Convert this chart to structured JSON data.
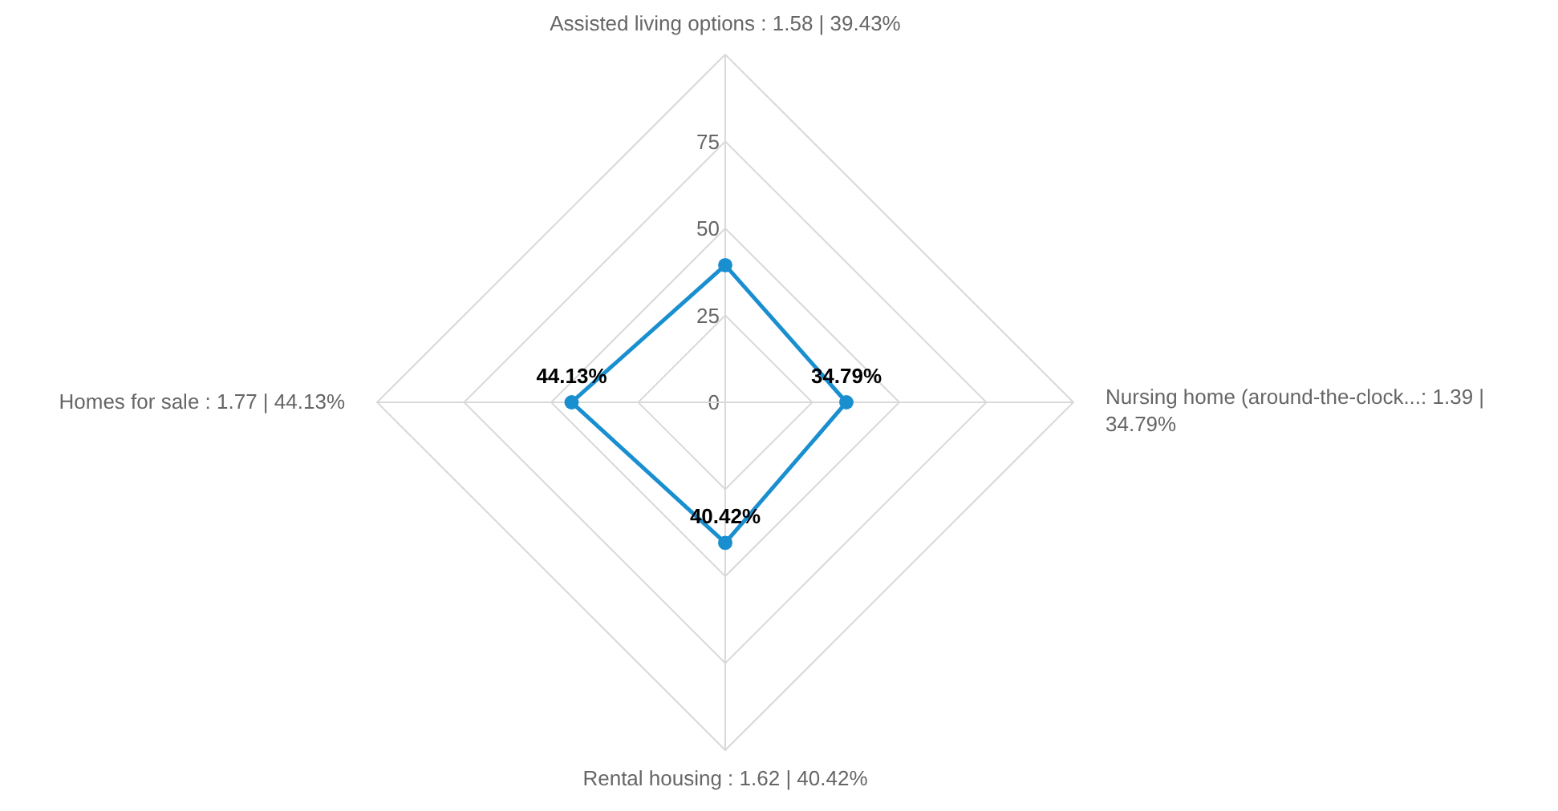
{
  "chart_data": {
    "type": "radar",
    "categories": [
      "Assisted living options : 1.58 | 39.43%",
      "Nursing home (around-the-clock...: 1.39 | 34.79%",
      "Rental housing : 1.62 | 40.42%",
      "Homes for sale : 1.77 | 44.13%"
    ],
    "series": [
      {
        "color": "#1a8fd0",
        "values": [
          39.43,
          34.79,
          40.42,
          44.13
        ],
        "value_labels": [
          null,
          "34.79%",
          "40.42%",
          "44.13%"
        ]
      }
    ],
    "ylim": [
      0,
      100
    ],
    "yticks": [
      0,
      25,
      50,
      75
    ],
    "grid": true,
    "marker": "circle",
    "line_style": "solid"
  }
}
